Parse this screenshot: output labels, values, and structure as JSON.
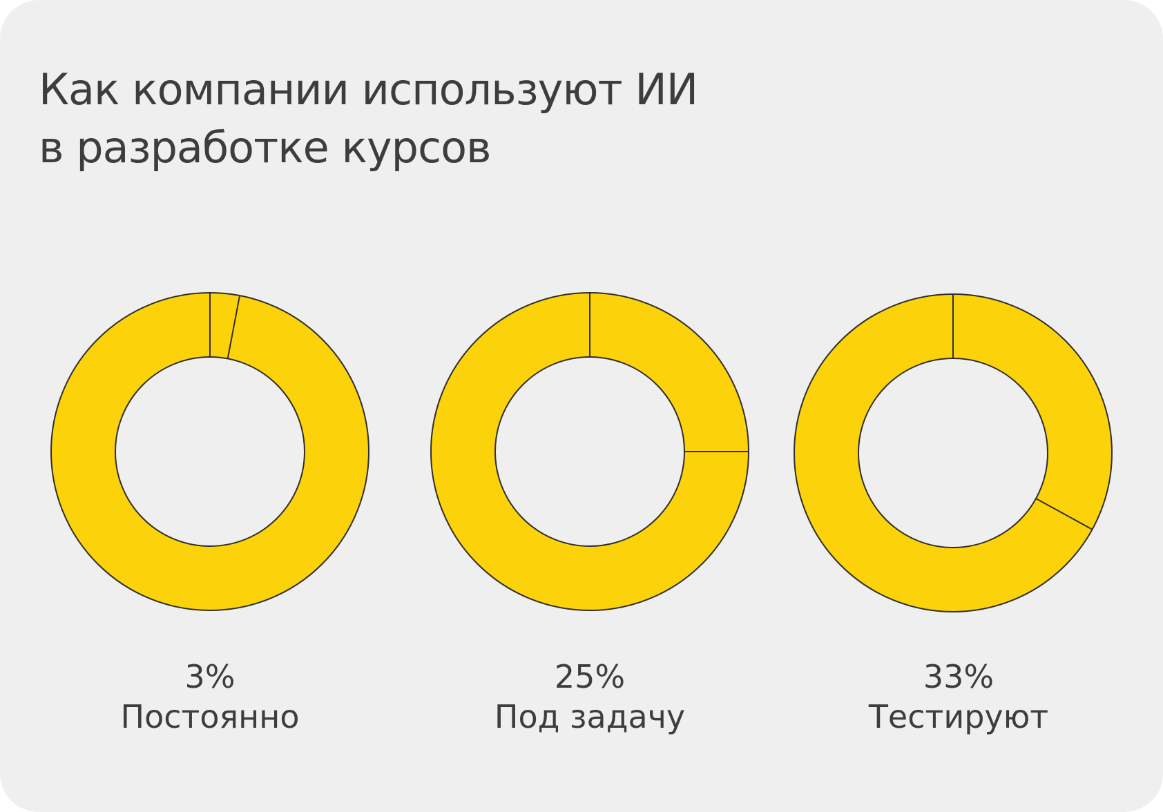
{
  "title": {
    "line1": "Как компании используют ИИ",
    "line2": "в разработке курсов"
  },
  "colors": {
    "background": "#efefef",
    "fill": "#fcd20b",
    "stroke": "#2e2e2e",
    "text": "#3d3d3d"
  },
  "chart_data": [
    {
      "type": "pie",
      "variant": "donut",
      "category": "Постоянно",
      "percent_label": "3%",
      "value": 3
    },
    {
      "type": "pie",
      "variant": "donut",
      "category": "Под задачу",
      "percent_label": "25%",
      "value": 25
    },
    {
      "type": "pie",
      "variant": "donut",
      "category": "Тестируют",
      "percent_label": "33%",
      "value": 33
    }
  ]
}
